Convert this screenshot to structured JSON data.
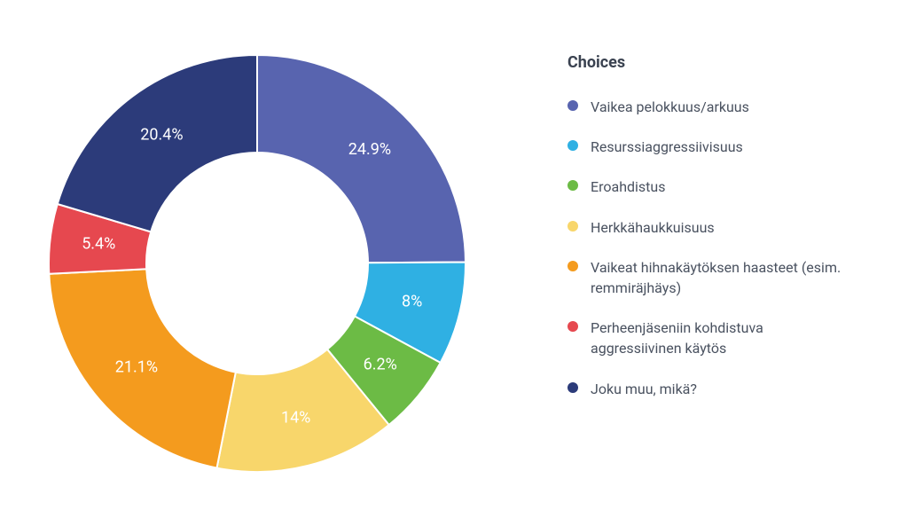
{
  "chart": {
    "type": "donut",
    "background_color": "#ffffff",
    "outer_radius": 235,
    "inner_radius": 125,
    "label_radius": 180,
    "label_fontsize": 18,
    "label_color": "#ffffff",
    "gap_color": "#ffffff",
    "gap_width": 2,
    "start_angle_deg": -90,
    "slices": [
      {
        "label": "24.9%",
        "value": 24.9,
        "color": "#5864af"
      },
      {
        "label": "8%",
        "value": 8.0,
        "color": "#2fb0e3"
      },
      {
        "label": "6.2%",
        "value": 6.2,
        "color": "#6cbb45"
      },
      {
        "label": "14%",
        "value": 14.0,
        "color": "#f8d66b"
      },
      {
        "label": "21.1%",
        "value": 21.1,
        "color": "#f49b1e"
      },
      {
        "label": "5.4%",
        "value": 5.4,
        "color": "#e6484f"
      },
      {
        "label": "20.4%",
        "value": 20.4,
        "color": "#2c3b7a"
      }
    ]
  },
  "legend": {
    "title": "Choices",
    "title_fontsize": 18,
    "title_color": "#3a4250",
    "label_fontsize": 16,
    "label_color": "#4a5260",
    "items": [
      {
        "label": "Vaikea pelokkuus/arkuus",
        "color": "#5864af"
      },
      {
        "label": "Resurssiaggressiivisuus",
        "color": "#2fb0e3"
      },
      {
        "label": "Eroahdistus",
        "color": "#6cbb45"
      },
      {
        "label": "Herkkähaukkuisuus",
        "color": "#f8d66b"
      },
      {
        "label": "Vaikeat hihnakäytöksen haasteet (esim. remmiräjhäys)",
        "color": "#f49b1e"
      },
      {
        "label": "Perheenjäseniin kohdistuva aggressiivinen käytös",
        "color": "#e6484f"
      },
      {
        "label": "Joku muu, mikä?",
        "color": "#2c3b7a"
      }
    ]
  }
}
